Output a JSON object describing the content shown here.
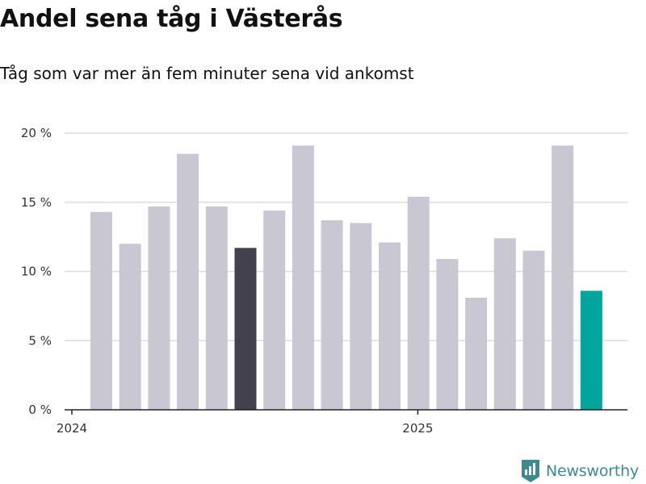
{
  "chart_data": {
    "type": "bar",
    "title": "Andel sena tåg i Västerås",
    "subtitle": "Tåg som var mer än fem minuter sena vid ankomst",
    "xlabel": "",
    "ylabel": "",
    "categories": [
      "2024-01",
      "2024-02",
      "2024-03",
      "2024-04",
      "2024-05",
      "2024-06",
      "2024-07",
      "2024-08",
      "2024-09",
      "2024-10",
      "2024-11",
      "2024-12",
      "2025-01",
      "2025-02",
      "2025-03",
      "2025-04",
      "2025-05",
      "2025-06"
    ],
    "values": [
      14.3,
      12.0,
      14.7,
      18.5,
      14.7,
      11.7,
      14.4,
      19.1,
      13.7,
      13.5,
      12.1,
      15.4,
      10.9,
      8.1,
      12.4,
      11.5,
      19.1,
      8.6
    ],
    "ylim": [
      0,
      20
    ],
    "yticks": [
      0,
      5,
      10,
      15,
      20
    ],
    "ytick_labels": [
      "0 %",
      "5 %",
      "10 %",
      "15 %",
      "20 %"
    ],
    "xtick_labels": [
      {
        "category": "2024-01",
        "label": "2024"
      },
      {
        "category": "2025-01",
        "label": "2025"
      }
    ],
    "colors": {
      "default": "#c8c7d2",
      "highlight_dark": "#42414d",
      "highlight_teal": "#00a59b",
      "grid": "#dcdcdc",
      "axis": "#222222"
    },
    "highlight_dark_index": 5,
    "highlight_teal_index": 17,
    "grid": true,
    "legend": "none"
  },
  "branding": {
    "logo_text": "Newsworthy",
    "logo_icon": "newsworthy-chart-icon",
    "logo_color": "#3d8a91"
  }
}
